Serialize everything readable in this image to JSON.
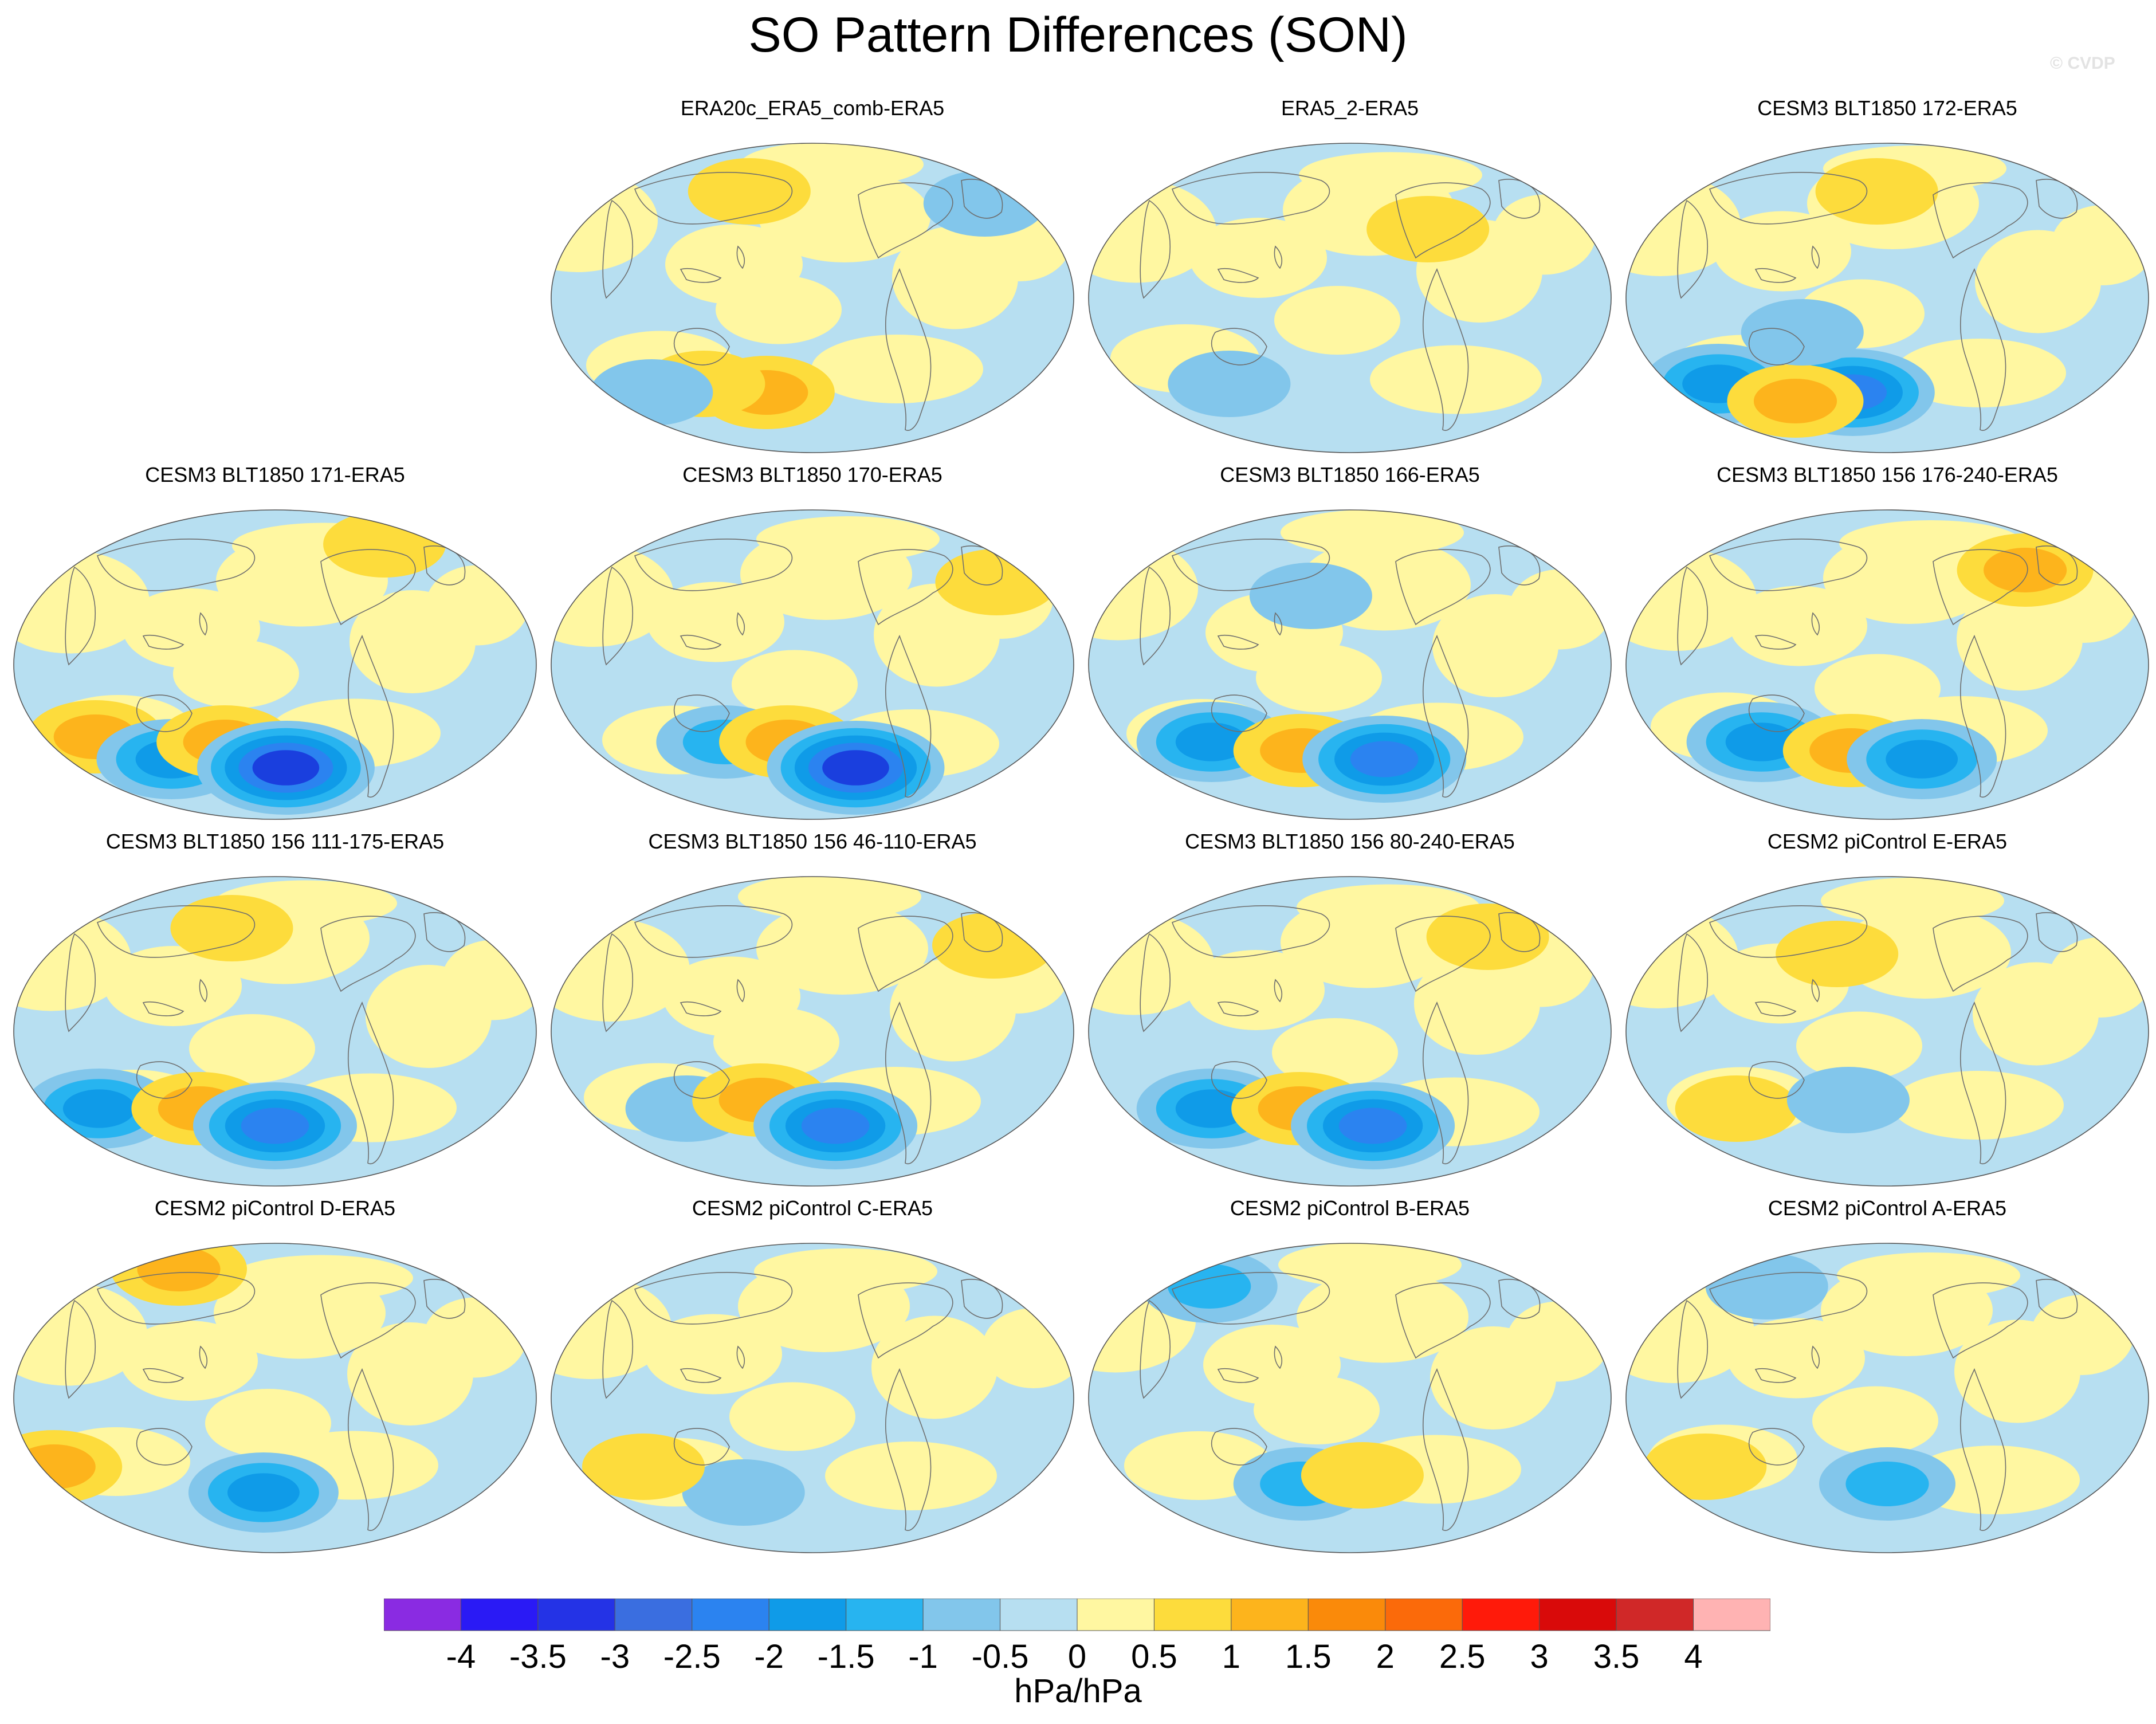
{
  "title": "SO Pattern Differences (SON)",
  "credit": "© CVDP",
  "colors": {
    "neg_weak": "#b7dff1",
    "neg_1": "#82c6eb",
    "neg_2": "#27b4f0",
    "neg_3": "#0f9be8",
    "neg_4": "#2b83f0",
    "neg_5": "#1a3fde",
    "pos_weak": "#fff7a1",
    "pos_1": "#fddc3c",
    "pos_2": "#fdb41c",
    "pos_3": "#fa8a0a",
    "coast": "#6e6e6e"
  },
  "panels": [
    {
      "title": "ERA20c_ERA5_comb-ERA5",
      "features": [
        {
          "kind": "pos",
          "strength": 2,
          "lon": -40,
          "lat": -55
        },
        {
          "kind": "pos",
          "strength": 1,
          "lon": -90,
          "lat": -50
        },
        {
          "kind": "neg",
          "strength": 1,
          "lon": -140,
          "lat": -55
        },
        {
          "kind": "neg",
          "strength": 1,
          "lon": 150,
          "lat": 55
        },
        {
          "kind": "pos",
          "strength": 1,
          "lon": -60,
          "lat": 62
        }
      ]
    },
    {
      "title": "ERA5_2-ERA5",
      "features": [
        {
          "kind": "neg",
          "strength": 1,
          "lon": -100,
          "lat": -50
        },
        {
          "kind": "pos",
          "strength": 1,
          "lon": 60,
          "lat": 40
        }
      ]
    },
    {
      "title": "CESM3 BLT1850 172-ERA5",
      "features": [
        {
          "kind": "neg",
          "strength": 3,
          "lon": -140,
          "lat": -50
        },
        {
          "kind": "neg",
          "strength": 4,
          "lon": -30,
          "lat": -55
        },
        {
          "kind": "pos",
          "strength": 2,
          "lon": -85,
          "lat": -60
        },
        {
          "kind": "neg",
          "strength": 1,
          "lon": -60,
          "lat": -20
        },
        {
          "kind": "pos",
          "strength": 1,
          "lon": -10,
          "lat": 62
        }
      ]
    },
    {
      "title": "CESM3 BLT1850 171-ERA5",
      "features": [
        {
          "kind": "pos",
          "strength": 2,
          "lon": -140,
          "lat": -42
        },
        {
          "kind": "neg",
          "strength": 3,
          "lon": -90,
          "lat": -55
        },
        {
          "kind": "pos",
          "strength": 2,
          "lon": -40,
          "lat": -45
        },
        {
          "kind": "neg",
          "strength": 5,
          "lon": 10,
          "lat": -60
        },
        {
          "kind": "pos",
          "strength": 1,
          "lon": 120,
          "lat": 70
        }
      ]
    },
    {
      "title": "CESM3 BLT1850 170-ERA5",
      "features": [
        {
          "kind": "neg",
          "strength": 2,
          "lon": -70,
          "lat": -45
        },
        {
          "kind": "pos",
          "strength": 2,
          "lon": -20,
          "lat": -45
        },
        {
          "kind": "neg",
          "strength": 5,
          "lon": 40,
          "lat": -60
        },
        {
          "kind": "pos",
          "strength": 1,
          "lon": 150,
          "lat": 48
        }
      ]
    },
    {
      "title": "CESM3 BLT1850 166-ERA5",
      "features": [
        {
          "kind": "neg",
          "strength": 3,
          "lon": -110,
          "lat": -45
        },
        {
          "kind": "pos",
          "strength": 2,
          "lon": -40,
          "lat": -50
        },
        {
          "kind": "neg",
          "strength": 4,
          "lon": 30,
          "lat": -55
        },
        {
          "kind": "neg",
          "strength": 1,
          "lon": -30,
          "lat": 40
        }
      ]
    },
    {
      "title": "CESM3 BLT1850 156 176-240-ERA5",
      "features": [
        {
          "kind": "neg",
          "strength": 3,
          "lon": -100,
          "lat": -45
        },
        {
          "kind": "pos",
          "strength": 2,
          "lon": -30,
          "lat": -50
        },
        {
          "kind": "neg",
          "strength": 3,
          "lon": 30,
          "lat": -55
        },
        {
          "kind": "pos",
          "strength": 2,
          "lon": 120,
          "lat": 55
        }
      ]
    },
    {
      "title": "CESM3 BLT1850 156 111-175-ERA5",
      "features": [
        {
          "kind": "neg",
          "strength": 3,
          "lon": -140,
          "lat": -45
        },
        {
          "kind": "pos",
          "strength": 2,
          "lon": -60,
          "lat": -45
        },
        {
          "kind": "neg",
          "strength": 4,
          "lon": 0,
          "lat": -55
        },
        {
          "kind": "pos",
          "strength": 1,
          "lon": -40,
          "lat": 60
        }
      ]
    },
    {
      "title": "CESM3 BLT1850 156 46-110-ERA5",
      "features": [
        {
          "kind": "neg",
          "strength": 1,
          "lon": -100,
          "lat": -45
        },
        {
          "kind": "pos",
          "strength": 2,
          "lon": -40,
          "lat": -40
        },
        {
          "kind": "neg",
          "strength": 4,
          "lon": 20,
          "lat": -55
        },
        {
          "kind": "pos",
          "strength": 1,
          "lon": 150,
          "lat": 50
        }
      ]
    },
    {
      "title": "CESM3 BLT1850 156 80-240-ERA5",
      "features": [
        {
          "kind": "neg",
          "strength": 3,
          "lon": -110,
          "lat": -45
        },
        {
          "kind": "pos",
          "strength": 2,
          "lon": -40,
          "lat": -45
        },
        {
          "kind": "neg",
          "strength": 4,
          "lon": 20,
          "lat": -55
        },
        {
          "kind": "pos",
          "strength": 1,
          "lon": 120,
          "lat": 55
        }
      ]
    },
    {
      "title": "CESM2 piControl E-ERA5",
      "features": [
        {
          "kind": "pos",
          "strength": 1,
          "lon": -120,
          "lat": -45
        },
        {
          "kind": "neg",
          "strength": 1,
          "lon": -30,
          "lat": -40
        },
        {
          "kind": "pos",
          "strength": 1,
          "lon": -40,
          "lat": 45
        }
      ]
    },
    {
      "title": "CESM2 piControl D-ERA5",
      "features": [
        {
          "kind": "pos",
          "strength": 2,
          "lon": -170,
          "lat": -40
        },
        {
          "kind": "neg",
          "strength": 3,
          "lon": -10,
          "lat": -55
        },
        {
          "kind": "pos",
          "strength": 2,
          "lon": -120,
          "lat": 75
        }
      ]
    },
    {
      "title": "CESM2 piControl C-ERA5",
      "features": [
        {
          "kind": "neg",
          "strength": 1,
          "lon": -60,
          "lat": -55
        },
        {
          "kind": "pos",
          "strength": 1,
          "lon": -130,
          "lat": -40
        }
      ]
    },
    {
      "title": "CESM2 piControl B-ERA5",
      "features": [
        {
          "kind": "neg",
          "strength": 2,
          "lon": -40,
          "lat": -50
        },
        {
          "kind": "pos",
          "strength": 1,
          "lon": 10,
          "lat": -45
        },
        {
          "kind": "neg",
          "strength": 2,
          "lon": -140,
          "lat": 65
        }
      ]
    },
    {
      "title": "CESM2 piControl A-ERA5",
      "features": [
        {
          "kind": "pos",
          "strength": 1,
          "lon": -140,
          "lat": -40
        },
        {
          "kind": "neg",
          "strength": 2,
          "lon": 0,
          "lat": -50
        },
        {
          "kind": "neg",
          "strength": 1,
          "lon": -120,
          "lat": 65
        }
      ]
    }
  ],
  "colorbar": {
    "colors": [
      "#8a2be2",
      "#2a1af5",
      "#2433e6",
      "#3a6ee0",
      "#2b83f0",
      "#0f9be8",
      "#27b4f0",
      "#82c6eb",
      "#b7dff1",
      "#fff7a1",
      "#fddc3c",
      "#fdb41c",
      "#fa8a0a",
      "#fb6a0a",
      "#ff1a0a",
      "#d90a0a",
      "#d02828",
      "#ffb3b3"
    ],
    "labels": [
      "-4",
      "-3.5",
      "-3",
      "-2.5",
      "-2",
      "-1.5",
      "-1",
      "-0.5",
      "0",
      "0.5",
      "1",
      "1.5",
      "2",
      "2.5",
      "3",
      "3.5",
      "4"
    ],
    "units": "hPa/hPa"
  }
}
